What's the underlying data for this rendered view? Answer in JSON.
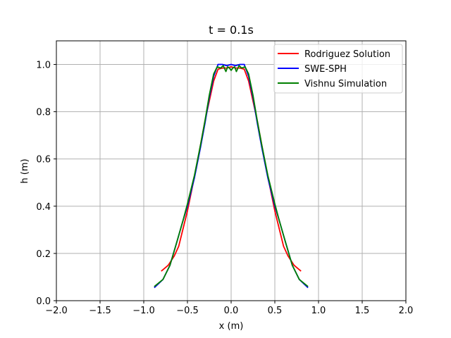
{
  "chart_data": {
    "type": "line",
    "title": "t = 0.1s",
    "xlabel": "x (m)",
    "ylabel": "h (m)",
    "xlim": [
      -2.0,
      2.0
    ],
    "ylim": [
      0.0,
      1.1
    ],
    "xticks": [
      -2.0,
      -1.5,
      -1.0,
      -0.5,
      0.0,
      0.5,
      1.0,
      1.5,
      2.0
    ],
    "xtick_labels": [
      "−2.0",
      "−1.5",
      "−1.0",
      "−0.5",
      "0.0",
      "0.5",
      "1.0",
      "1.5",
      "2.0"
    ],
    "yticks": [
      0.0,
      0.2,
      0.4,
      0.6,
      0.8,
      1.0
    ],
    "ytick_labels": [
      "0.0",
      "0.2",
      "0.4",
      "0.6",
      "0.8",
      "1.0"
    ],
    "grid": true,
    "legend_position": "top-right",
    "series": [
      {
        "name": "Rodriguez Solution",
        "color": "#ff0000",
        "x": [
          -0.8,
          -0.72,
          -0.65,
          -0.6,
          -0.5,
          -0.4,
          -0.3,
          -0.2,
          -0.15,
          -0.1,
          -0.05,
          0.0,
          0.05,
          0.1,
          0.15,
          0.2,
          0.3,
          0.4,
          0.5,
          0.6,
          0.65,
          0.72,
          0.8
        ],
        "y": [
          0.125,
          0.15,
          0.19,
          0.23,
          0.38,
          0.56,
          0.76,
          0.93,
          0.98,
          0.985,
          0.985,
          0.99,
          0.985,
          0.985,
          0.98,
          0.93,
          0.76,
          0.56,
          0.38,
          0.23,
          0.19,
          0.15,
          0.125
        ]
      },
      {
        "name": "SWE-SPH",
        "color": "#0000ff",
        "x": [
          -0.88,
          -0.78,
          -0.7,
          -0.62,
          -0.55,
          -0.5,
          -0.42,
          -0.35,
          -0.3,
          -0.25,
          -0.2,
          -0.15,
          -0.1,
          -0.05,
          0.0,
          0.05,
          0.1,
          0.15,
          0.2,
          0.25,
          0.3,
          0.35,
          0.42,
          0.5,
          0.55,
          0.62,
          0.7,
          0.78,
          0.88
        ],
        "y": [
          0.055,
          0.09,
          0.15,
          0.25,
          0.34,
          0.4,
          0.52,
          0.65,
          0.75,
          0.86,
          0.95,
          1.0,
          1.0,
          0.995,
          1.0,
          0.995,
          1.0,
          1.0,
          0.95,
          0.86,
          0.75,
          0.65,
          0.52,
          0.4,
          0.34,
          0.25,
          0.15,
          0.09,
          0.055
        ]
      },
      {
        "name": "Vishnu Simulation",
        "color": "#008000",
        "x": [
          -0.88,
          -0.78,
          -0.7,
          -0.62,
          -0.55,
          -0.5,
          -0.42,
          -0.35,
          -0.3,
          -0.25,
          -0.2,
          -0.16,
          -0.12,
          -0.09,
          -0.06,
          -0.04,
          -0.02,
          0.0,
          0.02,
          0.04,
          0.06,
          0.09,
          0.12,
          0.16,
          0.2,
          0.25,
          0.3,
          0.35,
          0.42,
          0.5,
          0.55,
          0.62,
          0.7,
          0.78,
          0.88
        ],
        "y": [
          0.06,
          0.09,
          0.15,
          0.25,
          0.34,
          0.41,
          0.53,
          0.66,
          0.76,
          0.87,
          0.96,
          0.99,
          0.985,
          0.995,
          0.97,
          0.99,
          0.985,
          0.975,
          0.985,
          0.99,
          0.97,
          0.995,
          0.985,
          0.99,
          0.96,
          0.87,
          0.76,
          0.66,
          0.53,
          0.41,
          0.34,
          0.25,
          0.15,
          0.09,
          0.06
        ]
      }
    ]
  }
}
